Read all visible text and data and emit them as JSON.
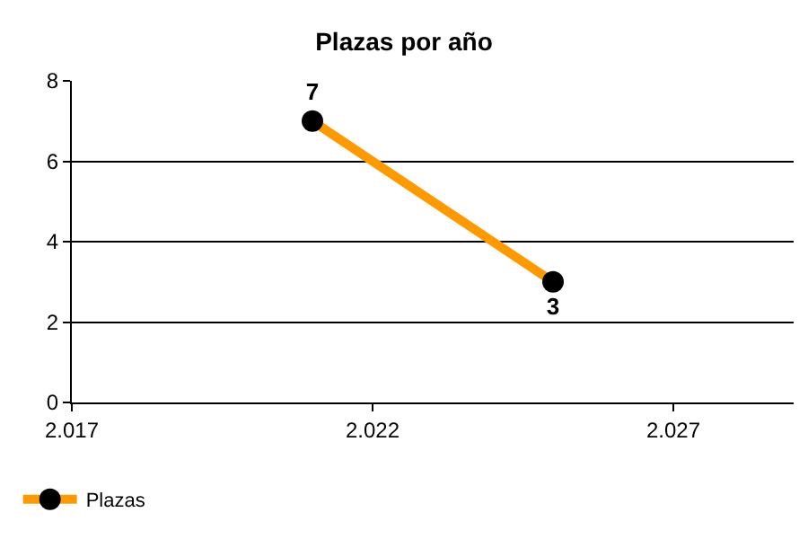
{
  "chart_data": {
    "type": "line",
    "title": "Plazas por año",
    "x": [
      2021,
      2025
    ],
    "series": [
      {
        "name": "Plazas",
        "color": "#ff9900",
        "values": [
          7,
          3
        ]
      }
    ],
    "xlim": [
      2017,
      2029
    ],
    "xticks": [
      {
        "value": 2017,
        "label": "2.017"
      },
      {
        "value": 2022,
        "label": "2.022"
      },
      {
        "value": 2027,
        "label": "2.027"
      }
    ],
    "ylim": [
      0,
      8
    ],
    "yticks": [
      0,
      2,
      4,
      6,
      8
    ],
    "grid": "y",
    "legend": "bottom left",
    "marker": "circle",
    "data_labels": true
  }
}
